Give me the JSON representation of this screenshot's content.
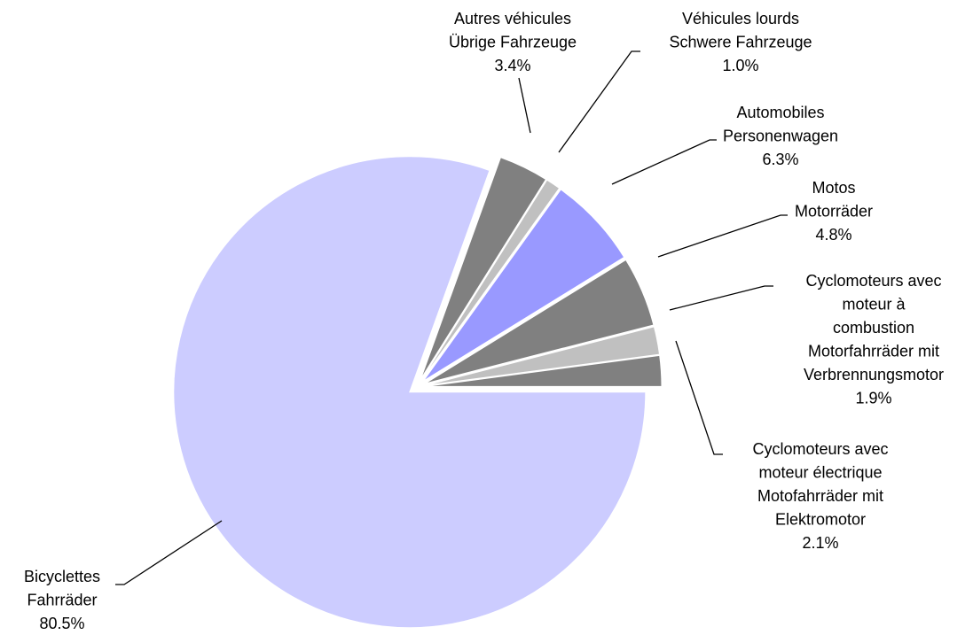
{
  "chart_data": {
    "type": "pie",
    "categories": [
      [
        "Bicyclettes",
        "Fahrräder"
      ],
      [
        "Autres véhicules",
        "Übrige Fahrzeuge"
      ],
      [
        "Véhicules lourds",
        "Schwere Fahrzeuge"
      ],
      [
        "Automobiles",
        "Personenwagen"
      ],
      [
        "Motos",
        "Motorräder"
      ],
      [
        "Cyclomoteurs avec",
        "moteur à",
        "combustion",
        "Motorfahrräder mit",
        "Verbrennungsmotor"
      ],
      [
        "Cyclomoteurs avec",
        "moteur électrique",
        "Motofahrräder mit",
        "Elektromotor"
      ]
    ],
    "values": [
      80.5,
      3.4,
      1.0,
      6.3,
      4.8,
      1.9,
      2.1
    ],
    "value_labels": [
      "80.5%",
      "3.4%",
      "1.0%",
      "6.3%",
      "4.8%",
      "1.9%",
      "2.1%"
    ],
    "colors": [
      "#ccccff",
      "#808080",
      "#c0c0c0",
      "#9999ff",
      "#808080",
      "#c0c0c0",
      "#808080"
    ]
  }
}
